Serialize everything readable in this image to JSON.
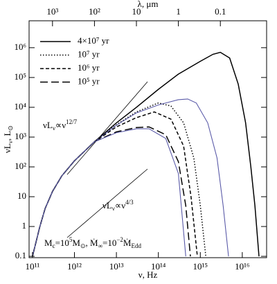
{
  "chart_data": {
    "type": "line",
    "x_label": [
      {
        "text": "ν, Hz"
      }
    ],
    "y_label": [
      {
        "text": "νL"
      },
      {
        "text": "ν",
        "pos": "sub"
      },
      {
        "text": ", L"
      },
      {
        "text": "⊙",
        "pos": "sub"
      }
    ],
    "x2_label": [
      {
        "text": "λ, μm"
      }
    ],
    "xscale": "log",
    "yscale": "log",
    "xlim": [
      83000000000.0,
      3.8e+16
    ],
    "ylim": [
      0.09,
      8000000.0
    ],
    "x2lim": [
      3614,
      0.0079
    ],
    "xticks": [
      {
        "value": 100000000000.0,
        "label": "10¹¹"
      },
      {
        "value": 1000000000000.0,
        "label": "10¹²"
      },
      {
        "value": 10000000000000.0,
        "label": "10¹³"
      },
      {
        "value": 100000000000000.0,
        "label": "10¹⁴"
      },
      {
        "value": 1000000000000000.0,
        "label": "10¹⁵"
      },
      {
        "value": 1e+16,
        "label": "10¹⁶"
      }
    ],
    "x2ticks": [
      {
        "value": 1000,
        "label": "10³"
      },
      {
        "value": 100,
        "label": "10²"
      },
      10,
      1,
      0.1
    ],
    "yticks": [
      0.1,
      1,
      10,
      {
        "value": 100,
        "label": "10²"
      },
      {
        "value": 1000,
        "label": "10³"
      },
      {
        "value": 10000,
        "label": "10⁴"
      },
      {
        "value": 100000,
        "label": "10⁵"
      },
      {
        "value": 1000000,
        "label": "10⁶"
      }
    ],
    "legend": "upper left",
    "series": [
      {
        "name": "4×10⁷ yr",
        "color": "#000000",
        "dash": "solid",
        "x": [
          100000000000.0,
          150000000000.0,
          200000000000.0,
          300000000000.0,
          500000000000.0,
          1000000000000.0,
          3000000000000.0,
          10000000000000.0,
          30000000000000.0,
          100000000000000.0,
          300000000000000.0,
          1000000000000000.0,
          2000000000000000.0,
          3000000000000000.0,
          5000000000000000.0,
          8000000000000000.0,
          1.2e+16,
          1.6e+16,
          2e+16,
          2.5e+16
        ],
        "values": [
          0.1,
          1,
          4,
          15,
          50,
          160,
          700,
          3000,
          10000,
          40000,
          130000,
          350000,
          600000,
          700000,
          450000,
          60000,
          3000,
          100,
          5,
          0.1
        ]
      },
      {
        "name": "10⁷ yr",
        "color": "#000000",
        "dash": "dotted",
        "x": [
          100000000000.0,
          150000000000.0,
          200000000000.0,
          300000000000.0,
          500000000000.0,
          1000000000000.0,
          3000000000000.0,
          10000000000000.0,
          30000000000000.0,
          100000000000000.0,
          200000000000000.0,
          400000000000000.0,
          700000000000000.0,
          1000000000000000.0,
          1350000000000000.0
        ],
        "values": [
          0.1,
          1,
          4,
          15,
          50,
          160,
          700,
          2600,
          7000,
          14000,
          11000,
          3000,
          200,
          5,
          0.1
        ]
      },
      {
        "color": "#5a5aa8",
        "dash": "solid",
        "x": [
          100000000000.0,
          150000000000.0,
          200000000000.0,
          300000000000.0,
          500000000000.0,
          1000000000000.0,
          3000000000000.0,
          10000000000000.0,
          30000000000000.0,
          100000000000000.0,
          300000000000000.0,
          500000000000000.0,
          800000000000000.0,
          1500000000000000.0,
          2500000000000000.0,
          3500000000000000.0,
          4700000000000000.0
        ],
        "values": [
          0.1,
          1,
          4,
          15,
          50,
          160,
          700,
          2500,
          6500,
          12000,
          18000,
          19000,
          14000,
          3000,
          200,
          5,
          0.1
        ]
      },
      {
        "name": "10⁶ yr",
        "color": "#000000",
        "dash": "dashed",
        "x": [
          100000000000.0,
          150000000000.0,
          200000000000.0,
          300000000000.0,
          500000000000.0,
          1000000000000.0,
          3000000000000.0,
          10000000000000.0,
          30000000000000.0,
          80000000000000.0,
          200000000000000.0,
          400000000000000.0,
          600000000000000.0,
          850000000000000.0
        ],
        "values": [
          0.1,
          1,
          4,
          15,
          50,
          160,
          700,
          2200,
          4500,
          7000,
          4000,
          500,
          10,
          0.1
        ]
      },
      {
        "name": "10⁵ yr",
        "color": "#000000",
        "dash": "longdash",
        "x": [
          100000000000.0,
          150000000000.0,
          200000000000.0,
          300000000000.0,
          500000000000.0,
          1000000000000.0,
          3000000000000.0,
          10000000000000.0,
          30000000000000.0,
          60000000000000.0,
          150000000000000.0,
          300000000000000.0,
          450000000000000.0,
          580000000000000.0
        ],
        "values": [
          0.1,
          1,
          4,
          15,
          50,
          160,
          700,
          1500,
          2100,
          2200,
          1200,
          150,
          5,
          0.1
        ]
      },
      {
        "color": "#5a5aa8",
        "dash": "solid",
        "x": [
          100000000000.0,
          150000000000.0,
          200000000000.0,
          300000000000.0,
          500000000000.0,
          1000000000000.0,
          3000000000000.0,
          10000000000000.0,
          30000000000000.0,
          60000000000000.0,
          150000000000000.0,
          300000000000000.0,
          450000000000000.0
        ],
        "values": [
          0.1,
          1,
          4,
          15,
          50,
          160,
          700,
          1400,
          1900,
          1900,
          900,
          60,
          0.1
        ]
      }
    ],
    "annotations": [
      [
        {
          "text": "νL"
        },
        {
          "text": "ν",
          "pos": "sub"
        },
        {
          "text": "∝ν"
        },
        {
          "text": "12/7",
          "pos": "sup"
        }
      ],
      [
        {
          "text": "νL"
        },
        {
          "text": "ν",
          "pos": "sub"
        },
        {
          "text": "∝ν"
        },
        {
          "text": "4/3",
          "pos": "sup"
        }
      ],
      [
        {
          "text": "M"
        },
        {
          "text": "c",
          "pos": "sub"
        },
        {
          "text": "=10"
        },
        {
          "text": "5",
          "pos": "sup"
        },
        {
          "text": "M"
        },
        {
          "text": "⊙",
          "pos": "sub"
        },
        {
          "text": ",  Ṁ"
        },
        {
          "text": "∞",
          "pos": "sub"
        },
        {
          "text": "=10"
        },
        {
          "text": "−2",
          "pos": "sup"
        },
        {
          "text": "Ṁ"
        },
        {
          "text": "Edd",
          "pos": "sub"
        }
      ]
    ]
  }
}
